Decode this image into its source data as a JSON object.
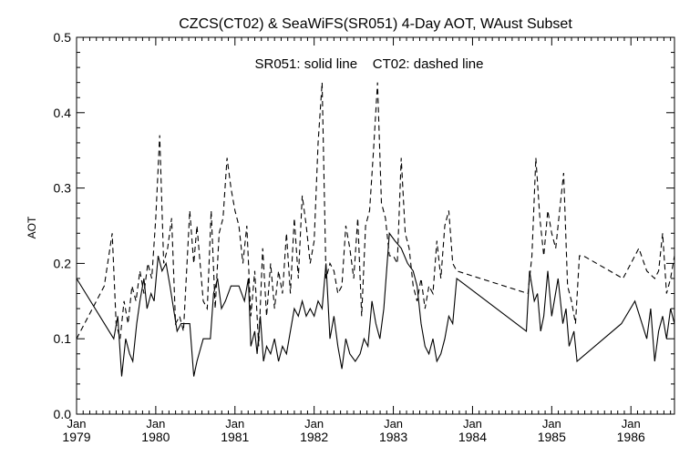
{
  "chart_data": {
    "type": "line",
    "title": "CZCS(CT02) & SeaWiFS(SR051) 4-Day AOT, WAust Subset",
    "annotation": "SR051: solid line    CT02: dashed line",
    "xlabel": "",
    "ylabel": "AOT",
    "xlim": [
      1979.0,
      1986.55
    ],
    "ylim": [
      0.0,
      0.5
    ],
    "grid": false,
    "legend": "none",
    "y_ticks": [
      {
        "value": 0.0,
        "label": "0.0"
      },
      {
        "value": 0.1,
        "label": "0.1"
      },
      {
        "value": 0.2,
        "label": "0.2"
      },
      {
        "value": 0.3,
        "label": "0.3"
      },
      {
        "value": 0.4,
        "label": "0.4"
      },
      {
        "value": 0.5,
        "label": "0.5"
      }
    ],
    "x_ticks": [
      {
        "value": 1979,
        "month": "Jan",
        "year": "1979"
      },
      {
        "value": 1980,
        "month": "Jan",
        "year": "1980"
      },
      {
        "value": 1981,
        "month": "Jan",
        "year": "1981"
      },
      {
        "value": 1982,
        "month": "Jan",
        "year": "1982"
      },
      {
        "value": 1983,
        "month": "Jan",
        "year": "1983"
      },
      {
        "value": 1984,
        "month": "Jan",
        "year": "1984"
      },
      {
        "value": 1985,
        "month": "Jan",
        "year": "1985"
      },
      {
        "value": 1986,
        "month": "Jan",
        "year": "1986"
      }
    ],
    "series": [
      {
        "name": "SR051",
        "style": "solid",
        "color": "#000000",
        "x": [
          1979.0,
          1979.47,
          1979.52,
          1979.57,
          1979.62,
          1979.67,
          1979.71,
          1979.76,
          1979.8,
          1979.85,
          1979.89,
          1979.94,
          1979.98,
          1980.03,
          1980.08,
          1980.13,
          1980.18,
          1980.27,
          1980.32,
          1980.43,
          1980.48,
          1980.52,
          1980.6,
          1980.69,
          1980.73,
          1980.78,
          1980.83,
          1980.88,
          1980.95,
          1981.05,
          1981.12,
          1981.17,
          1981.2,
          1981.25,
          1981.28,
          1981.32,
          1981.36,
          1981.4,
          1981.45,
          1981.5,
          1981.55,
          1981.6,
          1981.65,
          1981.7,
          1981.75,
          1981.8,
          1981.85,
          1981.9,
          1981.95,
          1982.0,
          1982.05,
          1982.1,
          1982.15,
          1982.2,
          1982.25,
          1982.3,
          1982.35,
          1982.4,
          1982.45,
          1982.52,
          1982.58,
          1982.63,
          1982.68,
          1982.73,
          1982.78,
          1982.83,
          1982.88,
          1982.95,
          1983.02,
          1983.1,
          1983.18,
          1983.25,
          1983.3,
          1983.35,
          1983.4,
          1983.45,
          1983.5,
          1983.55,
          1983.6,
          1983.65,
          1983.7,
          1983.75,
          1983.8,
          1984.68,
          1984.72,
          1984.78,
          1984.82,
          1984.86,
          1984.9,
          1984.95,
          1985.0,
          1985.08,
          1985.14,
          1985.18,
          1985.22,
          1985.28,
          1985.32,
          1985.88,
          1986.05,
          1986.2,
          1986.25,
          1986.3,
          1986.35,
          1986.4,
          1986.45,
          1986.5,
          1986.55
        ],
        "y": [
          0.18,
          0.1,
          0.13,
          0.05,
          0.1,
          0.08,
          0.07,
          0.12,
          0.15,
          0.18,
          0.14,
          0.16,
          0.15,
          0.21,
          0.19,
          0.2,
          0.17,
          0.11,
          0.12,
          0.12,
          0.05,
          0.07,
          0.1,
          0.1,
          0.16,
          0.18,
          0.14,
          0.15,
          0.17,
          0.17,
          0.15,
          0.18,
          0.09,
          0.11,
          0.08,
          0.13,
          0.07,
          0.09,
          0.08,
          0.1,
          0.07,
          0.09,
          0.08,
          0.11,
          0.14,
          0.13,
          0.15,
          0.13,
          0.14,
          0.13,
          0.15,
          0.14,
          0.2,
          0.1,
          0.13,
          0.09,
          0.06,
          0.1,
          0.08,
          0.07,
          0.08,
          0.1,
          0.09,
          0.15,
          0.12,
          0.1,
          0.14,
          0.24,
          0.23,
          0.22,
          0.2,
          0.19,
          0.17,
          0.12,
          0.09,
          0.08,
          0.1,
          0.07,
          0.08,
          0.1,
          0.13,
          0.12,
          0.18,
          0.11,
          0.19,
          0.15,
          0.16,
          0.11,
          0.13,
          0.19,
          0.13,
          0.18,
          0.12,
          0.14,
          0.09,
          0.11,
          0.07,
          0.12,
          0.15,
          0.1,
          0.14,
          0.07,
          0.11,
          0.13,
          0.1,
          0.14,
          0.12
        ]
      },
      {
        "name": "CT02",
        "style": "dashed",
        "color": "#000000",
        "x": [
          1979.0,
          1979.2,
          1979.35,
          1979.45,
          1979.5,
          1979.55,
          1979.6,
          1979.65,
          1979.7,
          1979.75,
          1979.8,
          1979.85,
          1979.9,
          1979.95,
          1980.0,
          1980.05,
          1980.1,
          1980.15,
          1980.2,
          1980.25,
          1980.3,
          1980.35,
          1980.43,
          1980.48,
          1980.52,
          1980.6,
          1980.65,
          1980.7,
          1980.75,
          1980.8,
          1980.85,
          1980.9,
          1980.95,
          1981.0,
          1981.05,
          1981.1,
          1981.15,
          1981.2,
          1981.25,
          1981.3,
          1981.35,
          1981.4,
          1981.45,
          1981.5,
          1981.55,
          1981.6,
          1981.65,
          1981.7,
          1981.75,
          1981.8,
          1981.85,
          1981.9,
          1981.95,
          1982.0,
          1982.05,
          1982.1,
          1982.15,
          1982.2,
          1982.25,
          1982.3,
          1982.35,
          1982.4,
          1982.45,
          1982.5,
          1982.55,
          1982.6,
          1982.65,
          1982.7,
          1982.75,
          1982.8,
          1982.85,
          1982.9,
          1982.95,
          1983.0,
          1983.05,
          1983.1,
          1983.15,
          1983.2,
          1983.25,
          1983.3,
          1983.35,
          1983.4,
          1983.45,
          1983.5,
          1983.55,
          1983.6,
          1983.65,
          1983.7,
          1983.75,
          1983.8,
          1984.7,
          1984.75,
          1984.8,
          1984.85,
          1984.9,
          1984.95,
          1985.0,
          1985.05,
          1985.1,
          1985.15,
          1985.2,
          1985.25,
          1985.3,
          1985.35,
          1985.4,
          1985.9,
          1986.1,
          1986.2,
          1986.3,
          1986.35,
          1986.4,
          1986.45,
          1986.5,
          1986.55
        ],
        "y": [
          0.1,
          0.14,
          0.17,
          0.24,
          0.12,
          0.1,
          0.15,
          0.12,
          0.17,
          0.15,
          0.19,
          0.16,
          0.2,
          0.18,
          0.26,
          0.37,
          0.2,
          0.22,
          0.26,
          0.12,
          0.13,
          0.11,
          0.27,
          0.2,
          0.25,
          0.15,
          0.14,
          0.27,
          0.14,
          0.24,
          0.26,
          0.34,
          0.3,
          0.27,
          0.25,
          0.2,
          0.25,
          0.13,
          0.19,
          0.09,
          0.22,
          0.13,
          0.2,
          0.14,
          0.19,
          0.16,
          0.24,
          0.16,
          0.26,
          0.18,
          0.29,
          0.25,
          0.2,
          0.23,
          0.36,
          0.44,
          0.18,
          0.2,
          0.19,
          0.16,
          0.17,
          0.25,
          0.22,
          0.18,
          0.26,
          0.13,
          0.25,
          0.27,
          0.35,
          0.44,
          0.28,
          0.26,
          0.21,
          0.21,
          0.2,
          0.34,
          0.24,
          0.22,
          0.17,
          0.15,
          0.18,
          0.14,
          0.17,
          0.16,
          0.23,
          0.18,
          0.25,
          0.27,
          0.2,
          0.19,
          0.16,
          0.21,
          0.34,
          0.26,
          0.21,
          0.27,
          0.24,
          0.22,
          0.27,
          0.32,
          0.17,
          0.15,
          0.12,
          0.21,
          0.21,
          0.18,
          0.22,
          0.19,
          0.18,
          0.19,
          0.24,
          0.16,
          0.18,
          0.21
        ]
      }
    ]
  }
}
